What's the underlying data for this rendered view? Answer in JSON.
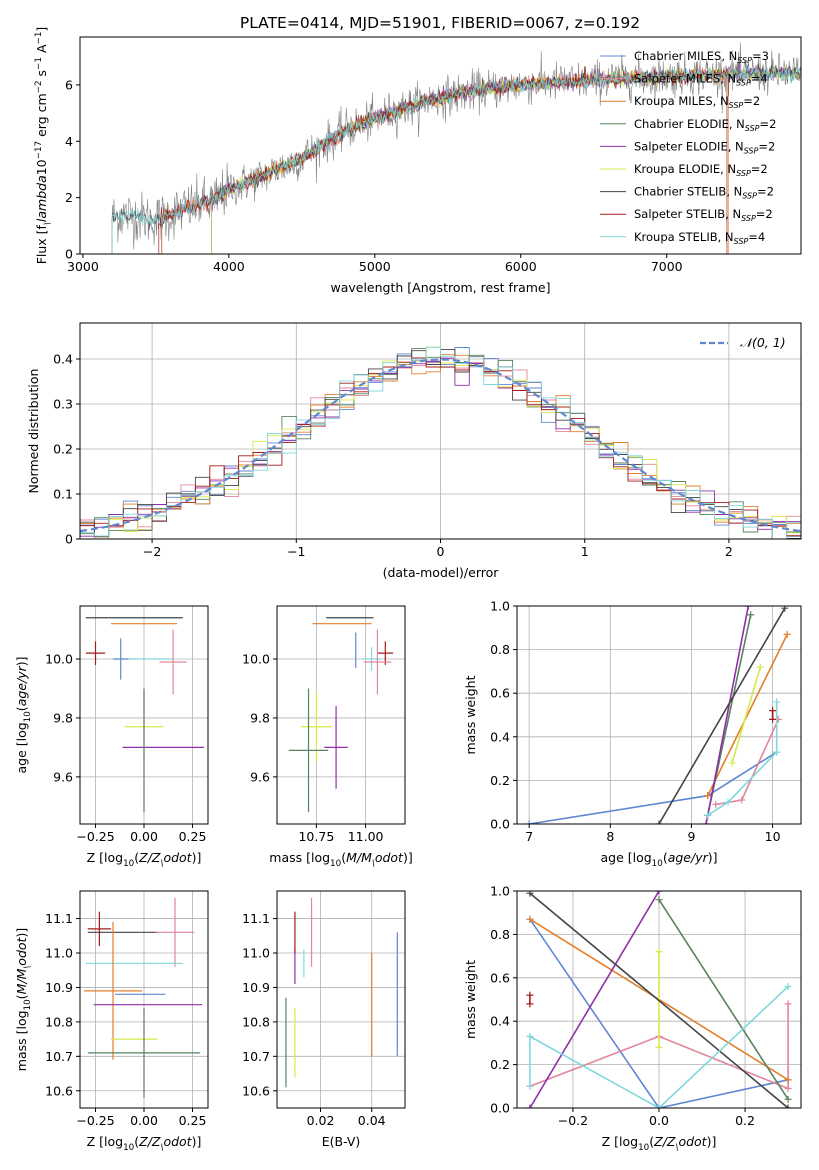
{
  "figure": {
    "title": "PLATE=0414, MJD=51901, FIBERID=0067, z=0.192"
  },
  "colors": {
    "chabrier_miles": "#5f87d2",
    "salpeter_miles": "#e2869b",
    "kroupa_miles": "#e57f2a",
    "chabrier_elodie": "#57835e",
    "salpeter_elodie": "#8f30a8",
    "kroupa_elodie": "#d8e84c",
    "chabrier_stelib": "#444444",
    "salpeter_stelib": "#a51b1b",
    "kroupa_stelib": "#80d8dc",
    "data_gray": "#808080",
    "normal_dash": "#5f87d2"
  },
  "chart_data": [
    {
      "id": "spectrum",
      "type": "line",
      "xlabel": "wavelength [Angstrom, rest frame]",
      "ylabel": "Flux [f$_\\lambda$10$^{-17}$ erg cm$^{-2}$ s$^{-1}$ A$^{-1}$]",
      "xlim": [
        2980,
        7920
      ],
      "ylim": [
        0,
        7.7
      ],
      "xticks": [
        3000,
        4000,
        5000,
        6000,
        7000
      ],
      "yticks": [
        0,
        2,
        4,
        6
      ],
      "grid": false,
      "legend_position": "upper-right",
      "continuum_x": [
        3200,
        3300,
        3500,
        3700,
        3900,
        4000,
        4200,
        4500,
        4800,
        5100,
        5400,
        5700,
        6000,
        6300,
        6600,
        7000,
        7400,
        7800
      ],
      "continuum_y": [
        1.3,
        1.4,
        1.2,
        1.6,
        1.9,
        2.3,
        2.7,
        3.4,
        4.4,
        5.0,
        5.5,
        5.8,
        6.0,
        6.1,
        6.2,
        6.3,
        6.4,
        6.4
      ],
      "series": [
        {
          "name": "Chabrier MILES",
          "nssp": "3",
          "color_key": "chabrier_miles"
        },
        {
          "name": "Salpeter MILES",
          "nssp": "4",
          "color_key": "salpeter_miles"
        },
        {
          "name": "Kroupa MILES",
          "nssp": "2",
          "color_key": "kroupa_miles"
        },
        {
          "name": "Chabrier ELODIE",
          "nssp": "2",
          "color_key": "chabrier_elodie"
        },
        {
          "name": "Salpeter ELODIE",
          "nssp": "2",
          "color_key": "salpeter_elodie"
        },
        {
          "name": "Kroupa ELODIE",
          "nssp": "2",
          "color_key": "kroupa_elodie"
        },
        {
          "name": "Chabrier STELIB",
          "nssp": "2",
          "color_key": "chabrier_stelib"
        },
        {
          "name": "Salpeter STELIB",
          "nssp": "2",
          "color_key": "salpeter_stelib"
        },
        {
          "name": "Kroupa STELIB",
          "nssp": "4",
          "color_key": "kroupa_stelib"
        }
      ]
    },
    {
      "id": "residuals",
      "type": "histogram",
      "xlabel": "(data-model)/error",
      "ylabel": "Normed distribution",
      "xlim": [
        -2.5,
        2.5
      ],
      "ylim": [
        0,
        0.48
      ],
      "xticks": [
        -2,
        -1,
        0,
        1,
        2
      ],
      "yticks": [
        0.0,
        0.1,
        0.2,
        0.3,
        0.4
      ],
      "grid": true,
      "legend_position": "upper-right",
      "normal_label": "\\mathcal{N}(0,1)",
      "bin_width": 0.1
    },
    {
      "id": "age_vs_Z",
      "type": "errorbar",
      "xlabel": "Z [log$_{10}$($Z/Z_\\odot$)]",
      "ylabel": "age  [log$_{10}$($age/yr$)]",
      "xlim": [
        -0.33,
        0.33
      ],
      "ylim": [
        9.44,
        10.18
      ],
      "xticks": [
        -0.25,
        0.0,
        0.25
      ],
      "xticklabels": [
        "−0.25",
        "0.00",
        "0.25"
      ],
      "yticks": [
        9.6,
        9.8,
        10.0
      ],
      "yticklabels": [
        "9.6",
        "9.8",
        "10.0"
      ],
      "grid": true,
      "points": [
        {
          "k": "chabrier_stelib",
          "x": -0.05,
          "y": 10.14,
          "xe": 0.25,
          "ye": 0.0
        },
        {
          "k": "kroupa_miles",
          "x": 0.0,
          "y": 10.12,
          "xe": 0.17,
          "ye": 0.0
        },
        {
          "k": "salpeter_stelib",
          "x": -0.25,
          "y": 10.02,
          "xe": 0.05,
          "ye": 0.04
        },
        {
          "k": "kroupa_stelib",
          "x": 0.0,
          "y": 10.0,
          "xe": 0.15,
          "ye": 0.0
        },
        {
          "k": "salpeter_miles",
          "x": 0.15,
          "y": 9.99,
          "xe": 0.07,
          "ye": 0.11
        },
        {
          "k": "chabrier_miles",
          "x": -0.12,
          "y": 10.0,
          "xe": 0.04,
          "ye": 0.07
        },
        {
          "k": "kroupa_elodie",
          "x": 0.0,
          "y": 9.77,
          "xe": 0.1,
          "ye": 0.12
        },
        {
          "k": "salpeter_elodie",
          "x": 0.1,
          "y": 9.7,
          "xe": 0.21,
          "ye": 0.0
        },
        {
          "k": "chabrier_elodie",
          "x": 0.0,
          "y": 9.69,
          "xe": 0.0,
          "ye": 0.21
        }
      ]
    },
    {
      "id": "age_vs_mass",
      "type": "errorbar",
      "xlabel": "mass [log$_{10}$($M/M_\\odot$)]",
      "ylabel": "",
      "xlim": [
        10.55,
        11.2
      ],
      "ylim": [
        9.44,
        10.18
      ],
      "xticks": [
        10.75,
        11.0
      ],
      "xticklabels": [
        "10.75",
        "11.00"
      ],
      "yticks": [
        9.6,
        9.8,
        10.0
      ],
      "yticklabels": [
        "9.6",
        "9.8",
        "10.0"
      ],
      "grid": true,
      "points": [
        {
          "k": "chabrier_stelib",
          "x": 10.92,
          "y": 10.14,
          "xe": 0.12,
          "ye": 0.0
        },
        {
          "k": "kroupa_miles",
          "x": 10.88,
          "y": 10.12,
          "xe": 0.15,
          "ye": 0.0
        },
        {
          "k": "salpeter_stelib",
          "x": 11.1,
          "y": 10.02,
          "xe": 0.04,
          "ye": 0.04
        },
        {
          "k": "kroupa_stelib",
          "x": 11.03,
          "y": 10.0,
          "xe": 0.05,
          "ye": 0.04
        },
        {
          "k": "salpeter_miles",
          "x": 11.06,
          "y": 9.99,
          "xe": 0.07,
          "ye": 0.11
        },
        {
          "k": "chabrier_miles",
          "x": 10.95,
          "y": 10.03,
          "xe": 0.0,
          "ye": 0.06
        },
        {
          "k": "kroupa_elodie",
          "x": 10.75,
          "y": 9.77,
          "xe": 0.08,
          "ye": 0.12
        },
        {
          "k": "salpeter_elodie",
          "x": 10.85,
          "y": 9.7,
          "xe": 0.06,
          "ye": 0.14
        },
        {
          "k": "chabrier_elodie",
          "x": 10.71,
          "y": 9.69,
          "xe": 0.1,
          "ye": 0.21
        }
      ]
    },
    {
      "id": "mw_vs_age",
      "type": "line",
      "xlabel": "age  [log$_{10}$($age/yr$)]",
      "ylabel": "mass weight",
      "xlim": [
        6.85,
        10.35
      ],
      "ylim": [
        0,
        1.0
      ],
      "xticks": [
        7,
        8,
        9,
        10
      ],
      "xticklabels": [
        "7",
        "8",
        "9",
        "10"
      ],
      "yticks": [
        0.0,
        0.2,
        0.4,
        0.6,
        0.8,
        1.0
      ],
      "yticklabels": [
        "0.0",
        "0.2",
        "0.4",
        "0.6",
        "0.8",
        "1.0"
      ],
      "grid": true,
      "series": [
        {
          "k": "chabrier_miles",
          "x": [
            7.0,
            9.2,
            10.05
          ],
          "y": [
            0.0,
            0.13,
            0.33
          ]
        },
        {
          "k": "salpeter_miles",
          "x": [
            9.3,
            9.62,
            10.07
          ],
          "y": [
            0.09,
            0.11,
            0.48
          ]
        },
        {
          "k": "kroupa_miles",
          "x": [
            9.2,
            10.18
          ],
          "y": [
            0.13,
            0.87
          ]
        },
        {
          "k": "chabrier_elodie",
          "x": [
            9.2,
            9.73
          ],
          "y": [
            0.04,
            0.96
          ]
        },
        {
          "k": "salpeter_elodie",
          "x": [
            9.18,
            9.7
          ],
          "y": [
            0.0,
            1.0
          ]
        },
        {
          "k": "kroupa_elodie",
          "x": [
            9.5,
            9.85
          ],
          "y": [
            0.28,
            0.72
          ]
        },
        {
          "k": "chabrier_stelib",
          "x": [
            8.6,
            10.15
          ],
          "y": [
            0.0,
            0.99
          ]
        },
        {
          "k": "salpeter_stelib",
          "x": [
            10.0,
            10.0
          ],
          "y": [
            0.48,
            0.52
          ]
        },
        {
          "k": "kroupa_stelib",
          "x": [
            9.2,
            9.45,
            10.05,
            10.05
          ],
          "y": [
            0.04,
            0.1,
            0.33,
            0.56
          ]
        }
      ]
    },
    {
      "id": "mass_vs_Z",
      "type": "errorbar",
      "xlabel": "Z [log$_{10}$($Z/Z_\\odot$)]",
      "ylabel": "mass [log$_{10}$($M/M_\\odot$)]",
      "xlim": [
        -0.33,
        0.33
      ],
      "ylim": [
        10.55,
        11.18
      ],
      "xticks": [
        -0.25,
        0.0,
        0.25
      ],
      "xticklabels": [
        "−0.25",
        "0.00",
        "0.25"
      ],
      "yticks": [
        10.6,
        10.7,
        10.8,
        10.9,
        11.0,
        11.1
      ],
      "yticklabels": [
        "10.6",
        "10.7",
        "10.8",
        "10.9",
        "11.0",
        "11.1"
      ],
      "grid": true,
      "points": [
        {
          "k": "chabrier_stelib",
          "x": -0.11,
          "y": 11.06,
          "xe": 0.18,
          "ye": 0.0
        },
        {
          "k": "salpeter_stelib",
          "x": -0.23,
          "y": 11.07,
          "xe": 0.06,
          "ye": 0.05
        },
        {
          "k": "salpeter_miles",
          "x": 0.16,
          "y": 11.06,
          "xe": 0.1,
          "ye": 0.1
        },
        {
          "k": "kroupa_stelib",
          "x": -0.05,
          "y": 10.97,
          "xe": 0.25,
          "ye": 0.0
        },
        {
          "k": "chabrier_miles",
          "x": -0.02,
          "y": 10.88,
          "xe": 0.13,
          "ye": 0.0
        },
        {
          "k": "kroupa_miles",
          "x": -0.16,
          "y": 10.89,
          "xe": 0.15,
          "ye": 0.2
        },
        {
          "k": "salpeter_elodie",
          "x": 0.02,
          "y": 10.85,
          "xe": 0.28,
          "ye": 0.0
        },
        {
          "k": "kroupa_elodie",
          "x": -0.05,
          "y": 10.75,
          "xe": 0.12,
          "ye": 0.0
        },
        {
          "k": "chabrier_elodie",
          "x": 0.0,
          "y": 10.71,
          "xe": 0.29,
          "ye": 0.13
        }
      ]
    },
    {
      "id": "mass_vs_ebv",
      "type": "errorbar",
      "xlabel": "E(B-V)",
      "ylabel": "",
      "xlim": [
        0.003,
        0.053
      ],
      "ylim": [
        10.55,
        11.18
      ],
      "xticks": [
        0.02,
        0.04
      ],
      "xticklabels": [
        "0.02",
        "0.04"
      ],
      "yticks": [
        10.6,
        10.7,
        10.8,
        10.9,
        11.0,
        11.1
      ],
      "yticklabels": [
        "10.6",
        "10.7",
        "10.8",
        "10.9",
        "11.0",
        "11.1"
      ],
      "grid": true,
      "points": [
        {
          "k": "chabrier_elodie",
          "x": 0.0065,
          "y": 10.74,
          "xe": 0.0,
          "ye": 0.13
        },
        {
          "k": "kroupa_elodie",
          "x": 0.01,
          "y": 10.74,
          "xe": 0.0,
          "ye": 0.1
        },
        {
          "k": "salpeter_elodie",
          "x": 0.01,
          "y": 10.96,
          "xe": 0.0,
          "ye": 0.05
        },
        {
          "k": "salpeter_stelib",
          "x": 0.01,
          "y": 11.06,
          "xe": 0.0,
          "ye": 0.06
        },
        {
          "k": "kroupa_stelib",
          "x": 0.0135,
          "y": 10.97,
          "xe": 0.0,
          "ye": 0.04
        },
        {
          "k": "salpeter_miles",
          "x": 0.0165,
          "y": 11.06,
          "xe": 0.0,
          "ye": 0.1
        },
        {
          "k": "kroupa_miles",
          "x": 0.04,
          "y": 10.85,
          "xe": 0.0,
          "ye": 0.15
        },
        {
          "k": "chabrier_miles",
          "x": 0.05,
          "y": 10.88,
          "xe": 0.0,
          "ye": 0.18
        }
      ]
    },
    {
      "id": "mw_vs_Z",
      "type": "line",
      "xlabel": "Z [log$_{10}$($Z/Z_\\odot$)]",
      "ylabel": "mass weight",
      "xlim": [
        -0.33,
        0.33
      ],
      "ylim": [
        0,
        1.0
      ],
      "xticks": [
        -0.2,
        0.0,
        0.2
      ],
      "xticklabels": [
        "−0.2",
        "0.0",
        "0.2"
      ],
      "yticks": [
        0.0,
        0.2,
        0.4,
        0.6,
        0.8,
        1.0
      ],
      "yticklabels": [
        "0.0",
        "0.2",
        "0.4",
        "0.6",
        "0.8",
        "1.0"
      ],
      "grid": true,
      "series": [
        {
          "k": "chabrier_miles",
          "x": [
            -0.3,
            0.0,
            0.3
          ],
          "y": [
            0.87,
            0.0,
            0.13
          ]
        },
        {
          "k": "salpeter_miles",
          "x": [
            -0.3,
            0.0,
            0.3,
            0.3
          ],
          "y": [
            0.1,
            0.33,
            0.09,
            0.48
          ]
        },
        {
          "k": "kroupa_miles",
          "x": [
            -0.3,
            0.3
          ],
          "y": [
            0.87,
            0.13
          ]
        },
        {
          "k": "chabrier_elodie",
          "x": [
            0.0,
            0.3
          ],
          "y": [
            0.96,
            0.04
          ]
        },
        {
          "k": "salpeter_elodie",
          "x": [
            -0.3,
            0.0
          ],
          "y": [
            0.0,
            1.0
          ]
        },
        {
          "k": "kroupa_elodie",
          "x": [
            0.0,
            0.0
          ],
          "y": [
            0.28,
            0.72
          ]
        },
        {
          "k": "chabrier_stelib",
          "x": [
            -0.3,
            0.3
          ],
          "y": [
            0.99,
            0.0
          ]
        },
        {
          "k": "salpeter_stelib",
          "x": [
            -0.3,
            -0.3
          ],
          "y": [
            0.48,
            0.52
          ]
        },
        {
          "k": "kroupa_stelib",
          "x": [
            -0.3,
            -0.3,
            0.0,
            0.3
          ],
          "y": [
            0.1,
            0.33,
            0.0,
            0.56
          ]
        }
      ]
    }
  ]
}
